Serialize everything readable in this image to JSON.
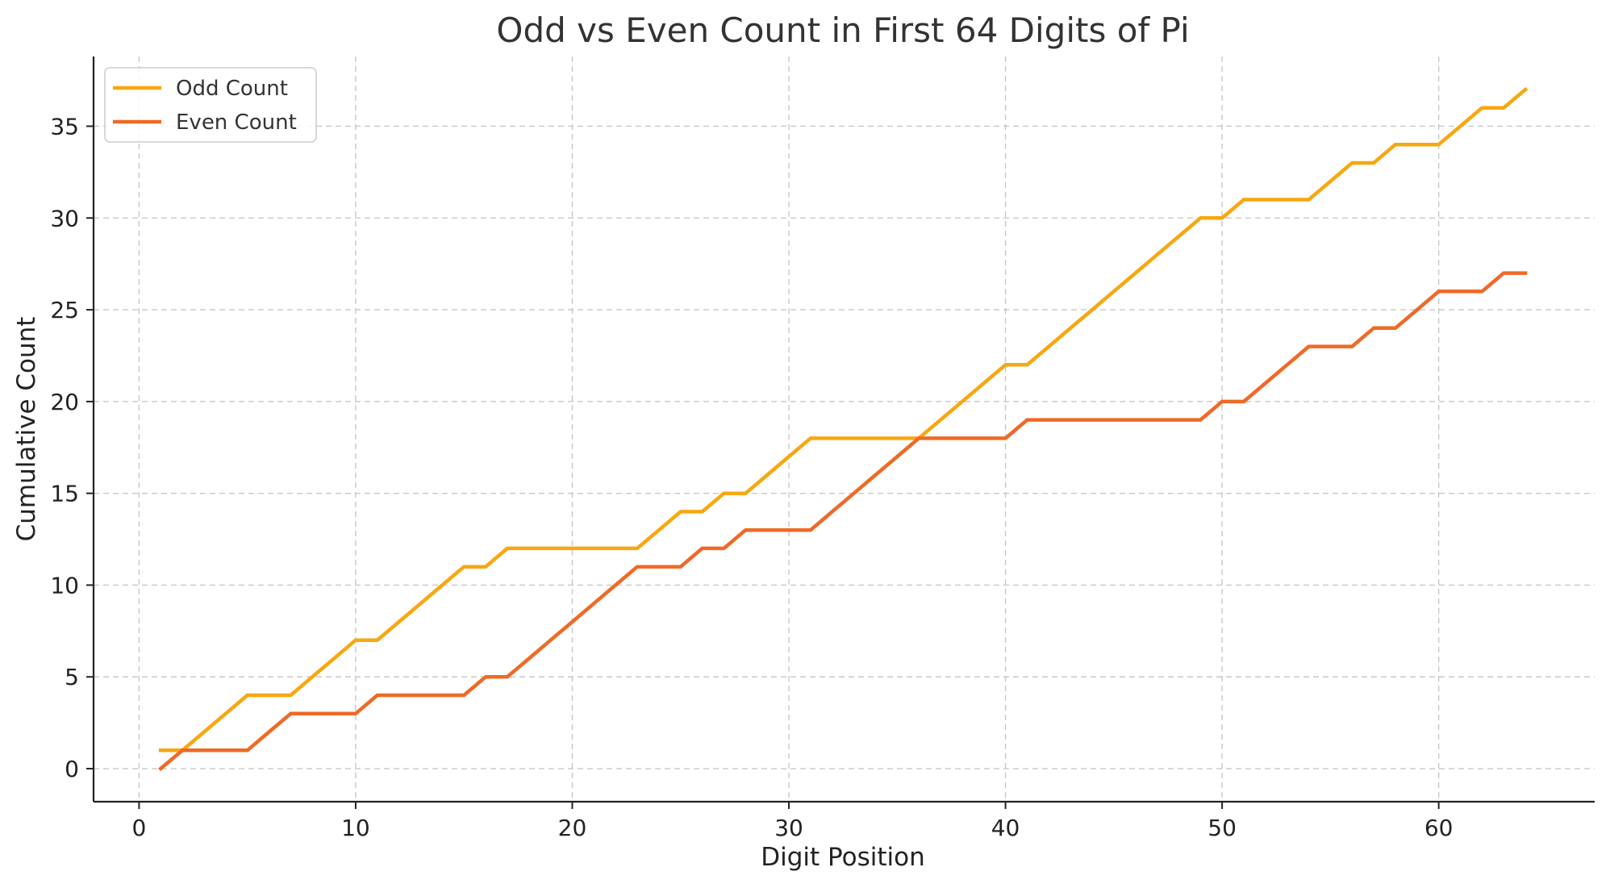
{
  "chart_data": {
    "type": "line",
    "title": "Odd vs Even Count in First 64 Digits of Pi",
    "xlabel": "Digit Position",
    "ylabel": "Cumulative Count",
    "xlim": [
      -2.1,
      67.2
    ],
    "ylim": [
      -1.8,
      38.8
    ],
    "xticks": [
      0,
      10,
      20,
      30,
      40,
      50,
      60
    ],
    "yticks": [
      0,
      5,
      10,
      15,
      20,
      25,
      30,
      35
    ],
    "grid": true,
    "legend": {
      "placement": "top-left"
    },
    "x": [
      1,
      2,
      3,
      4,
      5,
      6,
      7,
      8,
      9,
      10,
      11,
      12,
      13,
      14,
      15,
      16,
      17,
      18,
      19,
      20,
      21,
      22,
      23,
      24,
      25,
      26,
      27,
      28,
      29,
      30,
      31,
      32,
      33,
      34,
      35,
      36,
      37,
      38,
      39,
      40,
      41,
      42,
      43,
      44,
      45,
      46,
      47,
      48,
      49,
      50,
      51,
      52,
      53,
      54,
      55,
      56,
      57,
      58,
      59,
      60,
      61,
      62,
      63,
      64
    ],
    "series": [
      {
        "name": "Odd Count",
        "color": "#F7A711",
        "values": [
          1,
          1,
          2,
          3,
          4,
          4,
          4,
          5,
          6,
          7,
          7,
          8,
          9,
          10,
          11,
          11,
          12,
          12,
          12,
          12,
          12,
          12,
          12,
          13,
          14,
          14,
          15,
          15,
          16,
          17,
          18,
          18,
          18,
          18,
          18,
          18,
          19,
          20,
          21,
          22,
          22,
          23,
          24,
          25,
          26,
          27,
          28,
          29,
          30,
          30,
          31,
          31,
          31,
          31,
          32,
          33,
          33,
          34,
          34,
          34,
          35,
          36,
          36,
          37
        ]
      },
      {
        "name": "Even Count",
        "color": "#EE6A26",
        "values": [
          0,
          1,
          1,
          1,
          1,
          2,
          3,
          3,
          3,
          3,
          4,
          4,
          4,
          4,
          4,
          5,
          5,
          6,
          7,
          8,
          9,
          10,
          11,
          11,
          11,
          12,
          12,
          13,
          13,
          13,
          13,
          14,
          15,
          16,
          17,
          18,
          18,
          18,
          18,
          18,
          19,
          19,
          19,
          19,
          19,
          19,
          19,
          19,
          19,
          20,
          20,
          21,
          22,
          23,
          23,
          23,
          24,
          24,
          25,
          26,
          26,
          26,
          27,
          27
        ]
      }
    ]
  }
}
